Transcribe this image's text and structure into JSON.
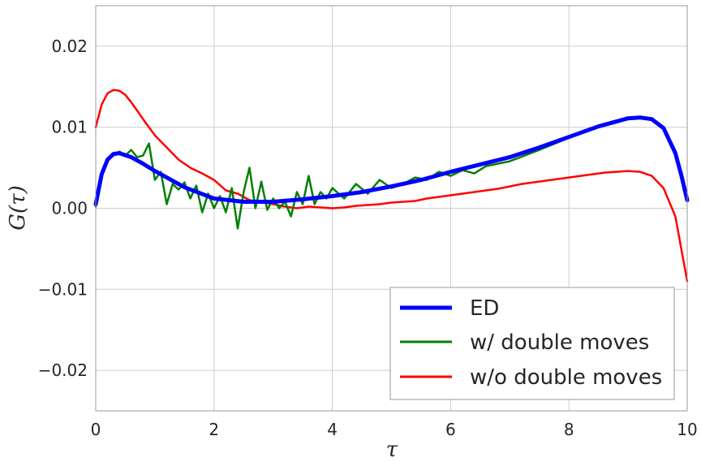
{
  "chart_data": {
    "type": "line",
    "xlabel": "τ",
    "ylabel": "G(τ)",
    "xlim": [
      0,
      10
    ],
    "ylim": [
      -0.025,
      0.025
    ],
    "xticks": [
      0,
      2,
      4,
      6,
      8,
      10
    ],
    "xtick_labels": [
      "0",
      "2",
      "4",
      "6",
      "8",
      "10"
    ],
    "yticks": [
      -0.02,
      -0.01,
      0.0,
      0.01,
      0.02
    ],
    "ytick_labels": [
      "−0.02",
      "−0.01",
      "0.00",
      "0.01",
      "0.02"
    ],
    "grid": true,
    "legend_position": "lower-right",
    "series": [
      {
        "name": "ED",
        "color": "#0000ff",
        "x": [
          0,
          0.1,
          0.2,
          0.3,
          0.4,
          0.6,
          0.8,
          1.0,
          1.5,
          2.0,
          2.5,
          3.0,
          3.5,
          4.0,
          4.5,
          5.0,
          5.5,
          6.0,
          6.5,
          7.0,
          7.5,
          8.0,
          8.5,
          9.0,
          9.2,
          9.4,
          9.6,
          9.8,
          9.9,
          10.0
        ],
        "y": [
          0.0005,
          0.0042,
          0.006,
          0.0067,
          0.0068,
          0.0063,
          0.0055,
          0.0046,
          0.0026,
          0.0012,
          0.0008,
          0.0008,
          0.0011,
          0.0015,
          0.002,
          0.0027,
          0.0035,
          0.0045,
          0.0054,
          0.0063,
          0.0075,
          0.0088,
          0.0101,
          0.0111,
          0.0112,
          0.011,
          0.0099,
          0.0068,
          0.0041,
          0.001
        ]
      },
      {
        "name": "w/ double moves",
        "color": "#008000",
        "x": [
          0,
          0.1,
          0.2,
          0.3,
          0.4,
          0.5,
          0.6,
          0.7,
          0.8,
          0.9,
          1.0,
          1.1,
          1.2,
          1.3,
          1.4,
          1.5,
          1.6,
          1.7,
          1.8,
          1.9,
          2.0,
          2.1,
          2.2,
          2.3,
          2.4,
          2.5,
          2.6,
          2.7,
          2.8,
          2.9,
          3.0,
          3.1,
          3.2,
          3.3,
          3.4,
          3.5,
          3.6,
          3.7,
          3.8,
          3.9,
          4.0,
          4.2,
          4.4,
          4.6,
          4.8,
          5.0,
          5.2,
          5.4,
          5.6,
          5.8,
          6.0,
          6.2,
          6.4,
          6.6,
          6.8,
          7.0,
          7.5,
          8.0,
          8.5,
          9.0,
          9.2,
          9.4,
          9.6,
          9.8,
          9.9,
          10.0
        ],
        "y": [
          0.0002,
          0.004,
          0.006,
          0.0065,
          0.007,
          0.0065,
          0.0072,
          0.0063,
          0.0065,
          0.008,
          0.0035,
          0.0045,
          0.0005,
          0.003,
          0.0023,
          0.0032,
          0.0012,
          0.0028,
          -0.0005,
          0.0018,
          0.0,
          0.0015,
          -0.0005,
          0.0025,
          -0.0025,
          0.002,
          0.005,
          0.0,
          0.0033,
          -0.0002,
          0.0012,
          0.0,
          0.0008,
          -0.001,
          0.002,
          0.0005,
          0.004,
          0.0005,
          0.002,
          0.0012,
          0.0025,
          0.0012,
          0.003,
          0.0018,
          0.0035,
          0.0025,
          0.003,
          0.0038,
          0.0035,
          0.0045,
          0.004,
          0.0047,
          0.0043,
          0.0052,
          0.0055,
          0.0058,
          0.0072,
          0.0087,
          0.01,
          0.011,
          0.0111,
          0.0109,
          0.0099,
          0.0067,
          0.004,
          0.001
        ]
      },
      {
        "name": "w/o double moves",
        "color": "#ff0000",
        "x": [
          0,
          0.1,
          0.2,
          0.3,
          0.4,
          0.5,
          0.6,
          0.8,
          1.0,
          1.2,
          1.4,
          1.6,
          1.8,
          2.0,
          2.2,
          2.4,
          2.6,
          2.8,
          3.0,
          3.2,
          3.4,
          3.6,
          3.8,
          4.0,
          4.2,
          4.4,
          4.6,
          4.8,
          5.0,
          5.2,
          5.4,
          5.6,
          5.8,
          6.0,
          6.2,
          6.4,
          6.6,
          6.8,
          7.0,
          7.2,
          7.4,
          7.6,
          7.8,
          8.0,
          8.2,
          8.4,
          8.6,
          8.8,
          9.0,
          9.2,
          9.4,
          9.6,
          9.8,
          10.0
        ],
        "y": [
          0.01,
          0.0128,
          0.0142,
          0.0146,
          0.0145,
          0.014,
          0.0131,
          0.011,
          0.009,
          0.0075,
          0.006,
          0.005,
          0.0043,
          0.0035,
          0.0022,
          0.0018,
          0.001,
          0.0008,
          0.0005,
          0.0002,
          0.0,
          0.0002,
          0.0001,
          0.0,
          0.0001,
          0.0003,
          0.0004,
          0.0005,
          0.0007,
          0.0008,
          0.0009,
          0.0012,
          0.0014,
          0.0016,
          0.0018,
          0.002,
          0.0022,
          0.0024,
          0.0027,
          0.003,
          0.0032,
          0.0034,
          0.0036,
          0.0038,
          0.004,
          0.0042,
          0.0044,
          0.0045,
          0.0046,
          0.0045,
          0.004,
          0.0025,
          -0.001,
          -0.009
        ]
      }
    ]
  }
}
